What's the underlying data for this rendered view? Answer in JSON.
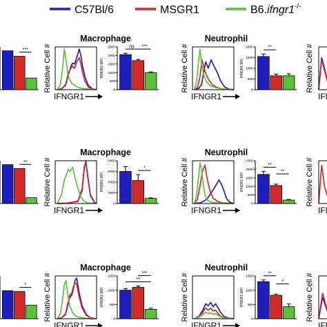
{
  "legend": [
    {
      "label": "C57Bl/6",
      "color": "#1f1fbf"
    },
    {
      "label": "MSGR1",
      "color": "#d42a2a"
    },
    {
      "label": "B6.",
      "label_italic": "ifngr1",
      "label_sup": "-/-",
      "color": "#5cc23a"
    }
  ],
  "colors": {
    "c57": "#1f1fbf",
    "msgr1": "#d42a2a",
    "ko": "#5cc23a"
  },
  "labels": {
    "hist_ylabel": "Relative Cell #",
    "hist_xlabel": "IFNGR1",
    "xlabel_partial": "IFNG",
    "mfi_ylabel": "IFNGR1 MFI",
    "macrophage": "Macrophage",
    "neutrophil": "Neutrophil"
  },
  "chart_data": [
    {
      "type": "bar",
      "row": 0,
      "panel": "left-bars-partial",
      "values": [
        1.0,
        0.86,
        0.3
      ],
      "sig": [
        {
          "from": 1,
          "to": 2,
          "label": "***"
        }
      ]
    },
    {
      "type": "line",
      "row": 0,
      "panel": "macrophage-histogram",
      "series": [
        {
          "name": "C57Bl/6",
          "x": [
            0.05,
            0.15,
            0.25,
            0.32,
            0.38,
            0.42,
            0.47,
            0.52,
            0.58,
            0.62,
            0.66,
            0.72,
            0.8,
            0.9,
            1.0
          ],
          "y": [
            0,
            0.02,
            0.1,
            0.35,
            0.55,
            0.62,
            0.6,
            0.75,
            0.95,
            0.8,
            0.55,
            0.3,
            0.1,
            0.02,
            0
          ]
        },
        {
          "name": "MSGR1",
          "x": [
            0.05,
            0.15,
            0.25,
            0.32,
            0.38,
            0.42,
            0.47,
            0.52,
            0.58,
            0.62,
            0.66,
            0.72,
            0.8,
            0.9,
            1.0
          ],
          "y": [
            0,
            0.02,
            0.12,
            0.4,
            0.5,
            0.55,
            0.5,
            0.65,
            0.75,
            0.6,
            0.4,
            0.2,
            0.06,
            0.01,
            0
          ]
        },
        {
          "name": "B6.ifngr1-/-",
          "x": [
            0.05,
            0.12,
            0.18,
            0.22,
            0.26,
            0.3,
            0.34,
            0.4,
            0.5,
            0.6,
            0.75,
            0.9,
            1.0
          ],
          "y": [
            0,
            0.1,
            0.5,
            0.95,
            0.7,
            0.4,
            0.25,
            0.15,
            0.08,
            0.04,
            0.02,
            0.01,
            0
          ]
        }
      ]
    },
    {
      "type": "bar",
      "row": 0,
      "panel": "macrophage-mfi",
      "ylim": [
        0,
        2500
      ],
      "yticks": [
        0,
        500,
        1000,
        1500,
        2000,
        2500
      ],
      "values": [
        2050,
        1700,
        1000
      ],
      "errors": [
        80,
        70,
        40
      ],
      "sig": [
        {
          "from": 0,
          "to": 1,
          "label": "ns"
        },
        {
          "from": 1,
          "to": 2,
          "label": "***"
        }
      ]
    },
    {
      "type": "line",
      "row": 0,
      "panel": "neutrophil-histogram",
      "series": [
        {
          "name": "C57Bl/6",
          "x": [
            0.05,
            0.15,
            0.22,
            0.27,
            0.32,
            0.38,
            0.45,
            0.52,
            0.6,
            0.68,
            0.78,
            0.9,
            1.0
          ],
          "y": [
            0,
            0.03,
            0.12,
            0.4,
            0.65,
            0.5,
            0.7,
            0.55,
            0.4,
            0.2,
            0.06,
            0.01,
            0
          ]
        },
        {
          "name": "MSGR1",
          "x": [
            0.05,
            0.12,
            0.18,
            0.23,
            0.28,
            0.33,
            0.4,
            0.48,
            0.58,
            0.7,
            0.85,
            1.0
          ],
          "y": [
            0,
            0.05,
            0.3,
            0.7,
            0.5,
            0.35,
            0.22,
            0.12,
            0.06,
            0.02,
            0.01,
            0
          ]
        },
        {
          "name": "B6.ifngr1-/-",
          "x": [
            0.05,
            0.1,
            0.14,
            0.18,
            0.22,
            0.27,
            0.33,
            0.42,
            0.55,
            0.7,
            0.85,
            1.0
          ],
          "y": [
            0,
            0.2,
            0.6,
            0.95,
            0.6,
            0.35,
            0.2,
            0.1,
            0.05,
            0.02,
            0.01,
            0
          ]
        }
      ]
    },
    {
      "type": "bar",
      "row": 0,
      "panel": "neutrophil-mfi",
      "ylim": [
        0,
        2000
      ],
      "yticks": [
        0,
        500,
        1000,
        1500,
        2000
      ],
      "values": [
        1550,
        650,
        650
      ],
      "errors": [
        120,
        80,
        90
      ],
      "sig": [
        {
          "from": 0,
          "to": 1,
          "label": "**"
        }
      ]
    },
    {
      "type": "line",
      "row": 0,
      "panel": "right-histogram-partial",
      "series": [
        {
          "name": "C57Bl/6",
          "x": [
            0,
            0.3,
            0.6,
            1.0
          ],
          "y": [
            0,
            0.75,
            0.5,
            0.1
          ]
        },
        {
          "name": "MSGR1",
          "x": [
            0,
            0.3,
            0.6,
            1.0
          ],
          "y": [
            0,
            0.7,
            0.45,
            0.1
          ]
        }
      ]
    },
    {
      "type": "bar",
      "row": 1,
      "panel": "left-bars-partial",
      "values": [
        1.0,
        0.9,
        0.15
      ],
      "sig": [
        {
          "from": 1,
          "to": 2,
          "label": "**"
        }
      ]
    },
    {
      "type": "line",
      "row": 1,
      "panel": "macrophage-histogram",
      "series": [
        {
          "name": "C57Bl/6",
          "x": [
            0.05,
            0.3,
            0.55,
            0.65,
            0.7,
            0.74,
            0.78,
            0.85,
            0.95,
            1.0
          ],
          "y": [
            0,
            0.01,
            0.05,
            0.3,
            0.8,
            1.0,
            0.7,
            0.2,
            0.03,
            0
          ]
        },
        {
          "name": "MSGR1",
          "x": [
            0.05,
            0.3,
            0.55,
            0.65,
            0.7,
            0.74,
            0.78,
            0.85,
            0.95,
            1.0
          ],
          "y": [
            0,
            0.01,
            0.06,
            0.35,
            0.85,
            0.98,
            0.65,
            0.18,
            0.02,
            0
          ]
        },
        {
          "name": "B6.ifngr1-/-",
          "x": [
            0.05,
            0.15,
            0.22,
            0.28,
            0.32,
            0.36,
            0.42,
            0.48,
            0.55,
            0.62,
            0.7,
            0.8,
            1.0
          ],
          "y": [
            0,
            0.2,
            0.55,
            0.7,
            0.8,
            0.75,
            0.85,
            0.6,
            0.35,
            0.15,
            0.05,
            0.01,
            0
          ]
        }
      ]
    },
    {
      "type": "bar",
      "row": 1,
      "panel": "macrophage-mfi",
      "ylim": [
        0,
        8000
      ],
      "yticks": [
        0,
        2000,
        4000,
        6000,
        8000
      ],
      "values": [
        6000,
        4300,
        950
      ],
      "errors": [
        900,
        1100,
        100
      ],
      "sig": [
        {
          "from": 1,
          "to": 2,
          "label": "*"
        }
      ]
    },
    {
      "type": "line",
      "row": 1,
      "panel": "neutrophil-histogram",
      "series": [
        {
          "name": "C57Bl/6",
          "x": [
            0.05,
            0.2,
            0.35,
            0.45,
            0.52,
            0.58,
            0.64,
            0.7,
            0.76,
            0.82,
            0.9,
            1.0
          ],
          "y": [
            0,
            0.02,
            0.1,
            0.25,
            0.35,
            0.45,
            0.55,
            0.45,
            0.3,
            0.12,
            0.03,
            0
          ]
        },
        {
          "name": "MSGR1",
          "x": [
            0.05,
            0.12,
            0.18,
            0.24,
            0.3,
            0.35,
            0.42,
            0.5,
            0.6,
            0.75,
            1.0
          ],
          "y": [
            0,
            0.1,
            0.4,
            0.75,
            0.9,
            0.6,
            0.3,
            0.12,
            0.05,
            0.01,
            0
          ]
        },
        {
          "name": "B6.ifngr1-/-",
          "x": [
            0.05,
            0.1,
            0.14,
            0.18,
            0.22,
            0.26,
            0.3,
            0.36,
            0.45,
            0.6,
            0.8,
            1.0
          ],
          "y": [
            0,
            0.2,
            0.55,
            0.95,
            0.8,
            0.45,
            0.2,
            0.08,
            0.03,
            0.01,
            0,
            0
          ]
        }
      ]
    },
    {
      "type": "bar",
      "row": 1,
      "panel": "neutrophil-mfi",
      "ylim": [
        0,
        2500
      ],
      "yticks": [
        0,
        500,
        1000,
        1500,
        2000,
        2500
      ],
      "values": [
        1700,
        1050,
        200
      ],
      "errors": [
        180,
        80,
        40
      ],
      "sig": [
        {
          "from": 0,
          "to": 1,
          "label": "**"
        },
        {
          "from": 1,
          "to": 2,
          "label": "**"
        }
      ]
    },
    {
      "type": "line",
      "row": 1,
      "panel": "right-histogram-partial",
      "series": [
        {
          "name": "MSGR1",
          "x": [
            0,
            0.3,
            0.6,
            1.0
          ],
          "y": [
            0,
            0.9,
            0.4,
            0.1
          ]
        }
      ]
    },
    {
      "type": "bar",
      "row": 2,
      "panel": "left-bars-partial",
      "values": [
        0.72,
        0.7,
        0.35
      ],
      "sig": [
        {
          "from": 1,
          "to": 2,
          "label": "*"
        }
      ]
    },
    {
      "type": "line",
      "row": 2,
      "panel": "macrophage-histogram",
      "series": [
        {
          "name": "C57Bl/6",
          "x": [
            0.05,
            0.15,
            0.25,
            0.3,
            0.35,
            0.4,
            0.44,
            0.48,
            0.52,
            0.58,
            0.65,
            0.75,
            0.85,
            1.0
          ],
          "y": [
            0,
            0.02,
            0.1,
            0.3,
            0.5,
            0.55,
            0.7,
            0.9,
            0.95,
            0.6,
            0.3,
            0.1,
            0.02,
            0
          ]
        },
        {
          "name": "MSGR1",
          "x": [
            0.05,
            0.15,
            0.25,
            0.3,
            0.35,
            0.4,
            0.44,
            0.48,
            0.52,
            0.58,
            0.65,
            0.75,
            0.85,
            1.0
          ],
          "y": [
            0,
            0.02,
            0.12,
            0.35,
            0.55,
            0.6,
            0.75,
            0.85,
            0.8,
            0.5,
            0.25,
            0.08,
            0.02,
            0
          ]
        },
        {
          "name": "B6.ifngr1-/-",
          "x": [
            0.05,
            0.12,
            0.18,
            0.22,
            0.26,
            0.3,
            0.35,
            0.42,
            0.5,
            0.6,
            0.75,
            0.9,
            1.0
          ],
          "y": [
            0,
            0.1,
            0.45,
            0.8,
            0.9,
            0.6,
            0.3,
            0.15,
            0.06,
            0.03,
            0.01,
            0,
            0
          ]
        }
      ]
    },
    {
      "type": "bar",
      "row": 2,
      "panel": "macrophage-mfi",
      "ylim": [
        0,
        1500
      ],
      "yticks": [
        0,
        500,
        1000,
        1500
      ],
      "values": [
        1000,
        1100,
        330
      ],
      "errors": [
        60,
        50,
        40
      ],
      "sig": [
        {
          "from": 0,
          "to": 2,
          "label": "**"
        },
        {
          "from": 1,
          "to": 2,
          "label": "***"
        }
      ]
    },
    {
      "type": "line",
      "row": 2,
      "panel": "neutrophil-histogram",
      "series": [
        {
          "name": "C57Bl/6",
          "x": [
            0.05,
            0.15,
            0.25,
            0.32,
            0.38,
            0.44,
            0.5,
            0.56,
            0.62,
            0.68,
            0.75,
            0.85,
            1.0
          ],
          "y": [
            0,
            0.05,
            0.2,
            0.35,
            0.3,
            0.38,
            0.28,
            0.35,
            0.25,
            0.15,
            0.06,
            0.02,
            0
          ]
        },
        {
          "name": "MSGR1",
          "x": [
            0.05,
            0.15,
            0.25,
            0.32,
            0.38,
            0.44,
            0.5,
            0.56,
            0.62,
            0.68,
            0.75,
            0.85,
            1.0
          ],
          "y": [
            0,
            0.04,
            0.15,
            0.25,
            0.2,
            0.25,
            0.18,
            0.2,
            0.12,
            0.06,
            0.02,
            0.01,
            0
          ]
        },
        {
          "name": "B6.ifngr1-/-",
          "x": [
            0.05,
            0.15,
            0.25,
            0.32,
            0.38,
            0.44,
            0.5,
            0.56,
            0.62,
            0.68,
            0.75,
            0.85,
            1.0
          ],
          "y": [
            0,
            0.03,
            0.1,
            0.15,
            0.12,
            0.14,
            0.1,
            0.12,
            0.08,
            0.04,
            0.02,
            0.01,
            0
          ]
        }
      ]
    },
    {
      "type": "bar",
      "row": 2,
      "panel": "neutrophil-mfi",
      "ylim": [
        0,
        1500
      ],
      "yticks": [
        0,
        500,
        1000,
        1500
      ],
      "values": [
        1300,
        820,
        420
      ],
      "errors": [
        60,
        40,
        100
      ],
      "sig": [
        {
          "from": 0,
          "to": 1,
          "label": "**"
        },
        {
          "from": 1,
          "to": 2,
          "label": "*"
        }
      ]
    },
    {
      "type": "line",
      "row": 2,
      "panel": "right-histogram-partial",
      "series": [
        {
          "name": "C57Bl/6",
          "x": [
            0,
            0.4,
            1.0
          ],
          "y": [
            0,
            0.5,
            0.1
          ]
        },
        {
          "name": "MSGR1",
          "x": [
            0,
            0.4,
            1.0
          ],
          "y": [
            0,
            0.6,
            0.1
          ]
        }
      ]
    }
  ]
}
